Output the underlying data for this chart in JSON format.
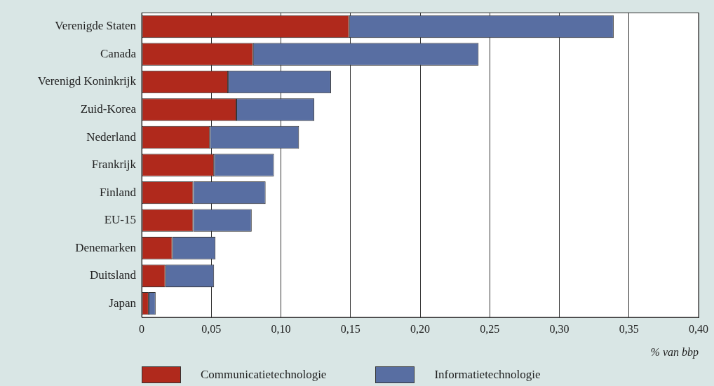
{
  "chart_data": {
    "type": "bar",
    "orientation": "horizontal",
    "stacked": true,
    "categories": [
      "Verenigde Staten",
      "Canada",
      "Verenigd Koninkrijk",
      "Zuid-Korea",
      "Nederland",
      "Frankrijk",
      "Finland",
      "EU-15",
      "Denemarken",
      "Duitsland",
      "Japan"
    ],
    "series": [
      {
        "name": "Communicatietechnologie",
        "color": "#b0291c",
        "values": [
          0.149,
          0.08,
          0.062,
          0.068,
          0.049,
          0.052,
          0.037,
          0.037,
          0.022,
          0.017,
          0.005
        ]
      },
      {
        "name": "Informatietechnologie",
        "color": "#586ea2",
        "values": [
          0.19,
          0.162,
          0.074,
          0.056,
          0.064,
          0.043,
          0.052,
          0.042,
          0.031,
          0.035,
          0.005
        ]
      }
    ],
    "xlabel": "% van bbp",
    "xlim": [
      0,
      0.4
    ],
    "xticks": [
      0,
      {
        "value": 0.05,
        "label": "0,05"
      },
      {
        "value": 0.1,
        "label": "0,10"
      },
      {
        "value": 0.15,
        "label": "0,15"
      },
      {
        "value": 0.2,
        "label": "0,20"
      },
      {
        "value": 0.25,
        "label": "0,25"
      },
      {
        "value": 0.3,
        "label": "0,30"
      },
      {
        "value": 0.35,
        "label": "0,35"
      },
      {
        "value": 0.4,
        "label": "0,40"
      }
    ],
    "grid": "x",
    "legend": "bottom left"
  }
}
